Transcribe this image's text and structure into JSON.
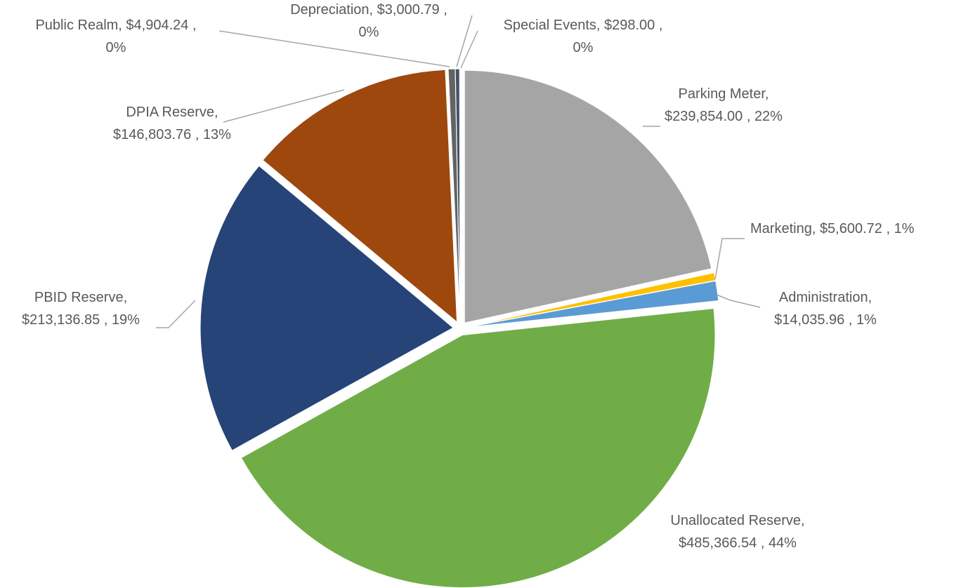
{
  "chart_data": {
    "type": "pie",
    "categories": [
      "Parking Meter",
      "Marketing",
      "Administration",
      "Unallocated Reserve",
      "PBID Reserve",
      "DPIA Reserve",
      "Public Realm",
      "Depreciation",
      "Special Events"
    ],
    "values": [
      239854.0,
      5600.72,
      14035.96,
      485366.54,
      213136.85,
      146803.76,
      4904.24,
      3000.79,
      298.0
    ],
    "value_labels": [
      "$239,854.00",
      "$5,600.72",
      "$14,035.96",
      "$485,366.54",
      "$213,136.85",
      "$146,803.76",
      "$4,904.24",
      "$3,000.79",
      "$298.00"
    ],
    "percent_labels": [
      "22%",
      "1%",
      "1%",
      "44%",
      "19%",
      "13%",
      "0%",
      "0%",
      "0%"
    ],
    "colors": [
      "#a5a5a5",
      "#ffc000",
      "#5b9bd5",
      "#70ad47",
      "#264478",
      "#9e480e",
      "#636363",
      "#44546a",
      "#255e91"
    ]
  }
}
